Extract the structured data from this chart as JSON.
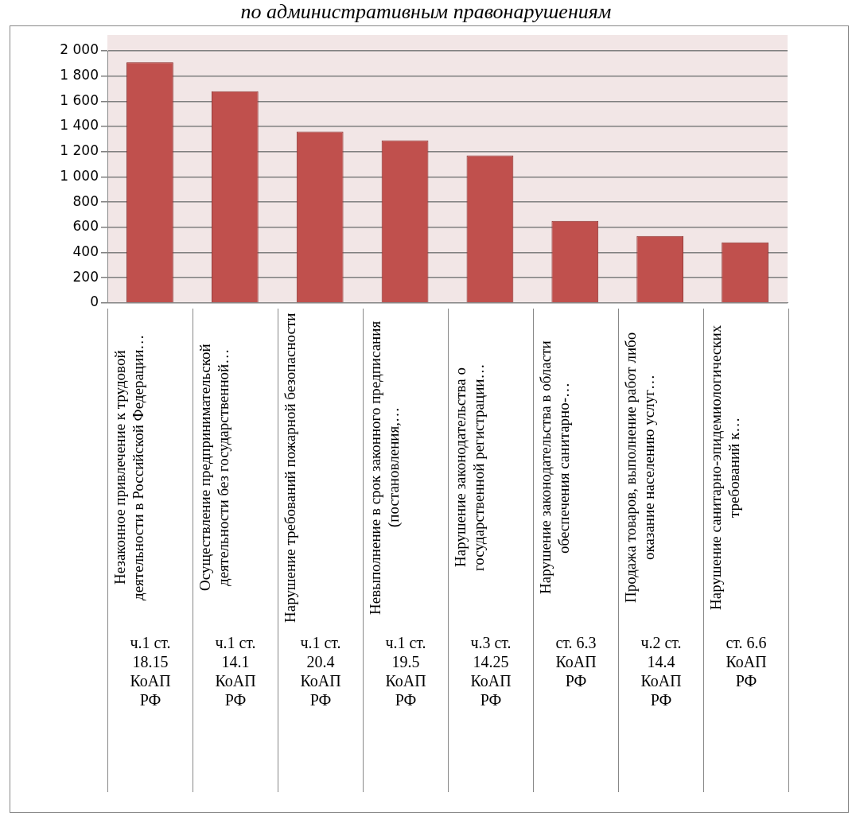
{
  "chart_data": {
    "type": "bar",
    "title": "по административным правонарушениям",
    "categories": [
      "Незаконное привлечение к трудовой деятельности в Российской Федерации…",
      "Осуществление предпринимательской деятельности без государственной…",
      "Нарушение требований пожарной безопасности",
      "Невыполнение в срок законного предписания (постановления,…",
      "Нарушение законодательства о государственной регистрации…",
      "Нарушение законодательства в области обеспечения санитарно-…",
      "Продажа товаров, выполнение работ либо оказание населению услуг…",
      "Нарушение санитарно-эпидемиологических требований к…"
    ],
    "values": [
      1910,
      1680,
      1360,
      1290,
      1170,
      650,
      530,
      480
    ],
    "color": "#c0504d",
    "ylim": [
      0,
      2000
    ],
    "yticks": [
      {
        "value": 0,
        "label": "0"
      },
      {
        "value": 200,
        "label": "200"
      },
      {
        "value": 400,
        "label": "400"
      },
      {
        "value": 600,
        "label": "600"
      },
      {
        "value": 800,
        "label": "800"
      },
      {
        "value": 1000,
        "label": "1 000"
      },
      {
        "value": 1200,
        "label": "1 200"
      },
      {
        "value": 1400,
        "label": "1 400"
      },
      {
        "value": 1600,
        "label": "1 600"
      },
      {
        "value": 1800,
        "label": "1 800"
      },
      {
        "value": 2000,
        "label": "2 000"
      }
    ],
    "grid": "y",
    "legend": false,
    "annotations": [
      "ч.1 ст. 18.15 КоАП РФ",
      "ч.1 ст. 14.1 КоАП РФ",
      "ч.1 ст. 20.4 КоАП РФ",
      "ч.1 ст. 19.5 КоАП РФ",
      "ч.3 ст. 14.25 КоАП РФ",
      "ст. 6.3 КоАП РФ",
      "ч.2 ст. 14.4 КоАП РФ",
      "ст. 6.6 КоАП РФ"
    ]
  }
}
